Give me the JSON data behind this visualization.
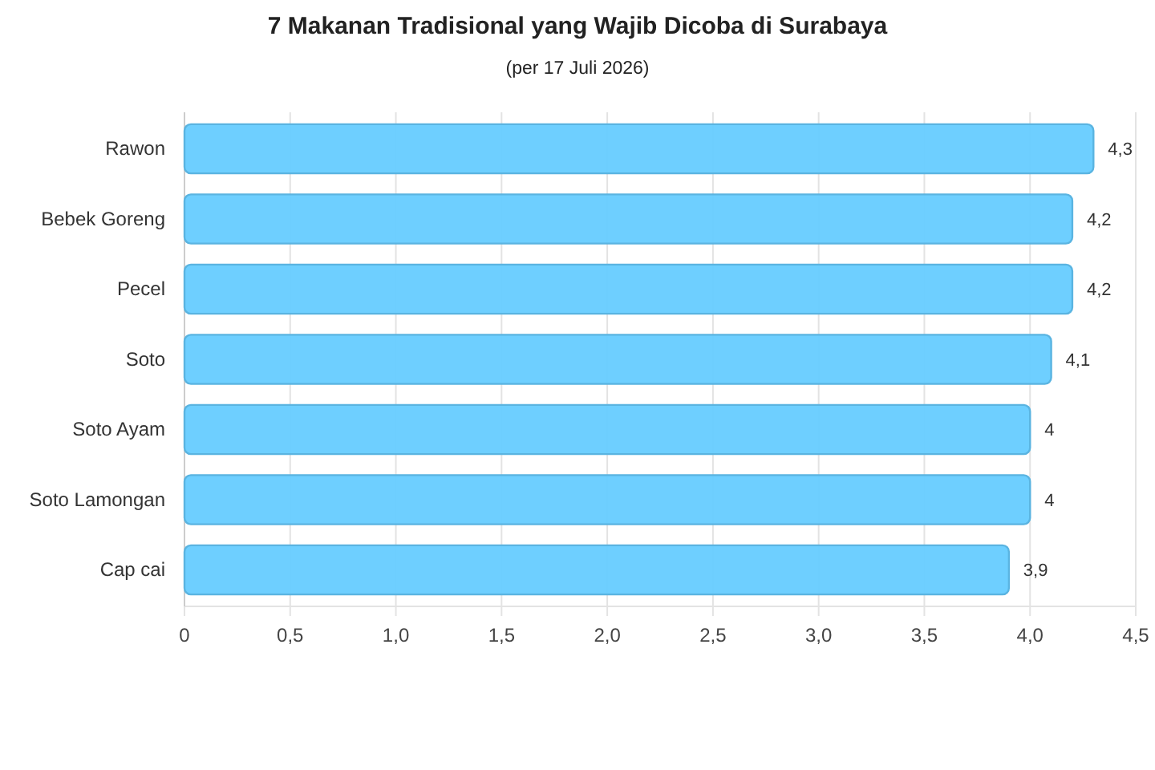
{
  "chart_data": {
    "type": "bar",
    "orientation": "horizontal",
    "title": "7 Makanan Tradisional yang Wajib Dicoba di Surabaya",
    "subtitle": "(per 17 Juli 2026)",
    "categories": [
      "Rawon",
      "Bebek Goreng",
      "Pecel",
      "Soto",
      "Soto Ayam",
      "Soto Lamongan",
      "Cap cai"
    ],
    "values": [
      4.3,
      4.2,
      4.2,
      4.1,
      4,
      4,
      3.9
    ],
    "value_labels": [
      "4,3",
      "4,2",
      "4,2",
      "4,1",
      "4",
      "4",
      "3,9"
    ],
    "color": "#66ccff",
    "xlim": [
      0,
      4.5
    ],
    "xticks": [
      0,
      {
        "value": 0.5,
        "label": "0,5"
      },
      {
        "value": 1,
        "label": "1,0"
      },
      {
        "value": 1.5,
        "label": "1,5"
      },
      {
        "value": 2,
        "label": "2,0"
      },
      {
        "value": 2.5,
        "label": "2,5"
      },
      {
        "value": 3,
        "label": "3,0"
      },
      {
        "value": 3.5,
        "label": "3,5"
      },
      {
        "value": 4,
        "label": "4,0"
      },
      {
        "value": 4.5,
        "label": "4,5"
      }
    ],
    "grid": "x"
  }
}
